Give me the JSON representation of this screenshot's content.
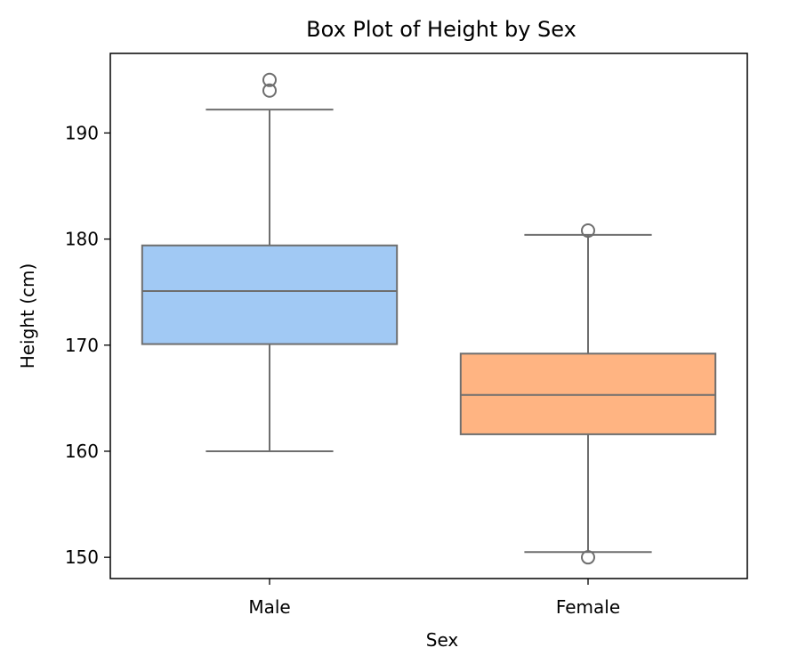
{
  "chart_data": {
    "type": "box",
    "title": "Box Plot of Height by Sex",
    "xlabel": "Sex",
    "ylabel": "Height (cm)",
    "categories": [
      "Male",
      "Female"
    ],
    "ylim": [
      148,
      197.5
    ],
    "yticks": [
      150,
      160,
      170,
      180,
      190
    ],
    "ytick_labels": [
      "150",
      "160",
      "170",
      "180",
      "190"
    ],
    "grid": false,
    "legend": "none",
    "boxes": [
      {
        "category": "Male",
        "whisker_low": 160.0,
        "q1": 170.1,
        "median": 175.1,
        "q3": 179.4,
        "whisker_high": 192.2,
        "outliers": [
          195.0,
          194.0
        ],
        "color": "#a1c9f4"
      },
      {
        "category": "Female",
        "whisker_low": 150.5,
        "q1": 161.6,
        "median": 165.3,
        "q3": 169.2,
        "whisker_high": 180.4,
        "outliers": [
          180.8,
          150.0
        ],
        "color": "#ffb482"
      }
    ],
    "line_color": "#6e6e6e"
  }
}
